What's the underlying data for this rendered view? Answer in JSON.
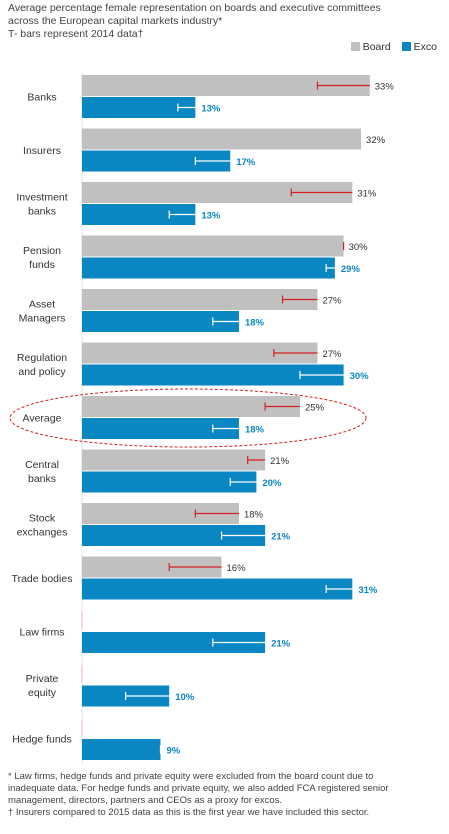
{
  "title_lines": [
    "Average percentage female representation on boards and executive committees",
    "across the European capital markets industry*",
    "T- bars represent 2014 data†"
  ],
  "legend": {
    "board": "Board",
    "exco": "Exco"
  },
  "colors": {
    "board": "#c0c0c0",
    "exco": "#0a86c3",
    "board_tbar": "#d42020",
    "exco_tbar": "#ffffff",
    "highlight": "#d42020"
  },
  "chart_data": {
    "type": "bar",
    "orientation": "horizontal",
    "categories": [
      "Banks",
      "Insurers",
      "Investment\nbanks",
      "Pension\nfunds",
      "Asset\nManagers",
      "Regulation\nand policy",
      "Average",
      "Central\nbanks",
      "Stock\nexchanges",
      "Trade bodies",
      "Law firms",
      "Private\nequity",
      "Hedge funds"
    ],
    "series": [
      {
        "name": "Board",
        "values": [
          33,
          32,
          31,
          30,
          27,
          27,
          25,
          21,
          18,
          16,
          null,
          null,
          null
        ],
        "labels": [
          "33%",
          "32%",
          "31%",
          "30%",
          "27%",
          "27%",
          "25%",
          "21%",
          "18%",
          "16%",
          "",
          "",
          ""
        ]
      },
      {
        "name": "Exco",
        "values": [
          13,
          17,
          13,
          29,
          18,
          30,
          18,
          20,
          21,
          31,
          21,
          10,
          9
        ],
        "labels": [
          "13%",
          "17%",
          "13%",
          "29%",
          "18%",
          "30%",
          "18%",
          "20%",
          "21%",
          "31%",
          "21%",
          "10%",
          "9%"
        ]
      }
    ],
    "t_bars_2014": {
      "Board": [
        27,
        null,
        24,
        30,
        23,
        22,
        21,
        19,
        13,
        10,
        null,
        null,
        null
      ],
      "Exco": [
        11,
        13,
        10,
        28,
        15,
        25,
        15,
        17,
        16,
        28,
        15,
        5,
        9
      ]
    },
    "highlighted_category": "Average",
    "xlim": [
      0,
      35
    ],
    "grid": false
  },
  "footnotes": [
    "* Law firms, hedge funds and private equity were excluded from the board count due to",
    "inadequate data. For hedge funds and private equity, we also added FCA registered senior",
    "management, directors, partners and CEOs as a proxy for excos.",
    "† Insurers compared to 2015 data as this is the first year we have included this sector."
  ]
}
